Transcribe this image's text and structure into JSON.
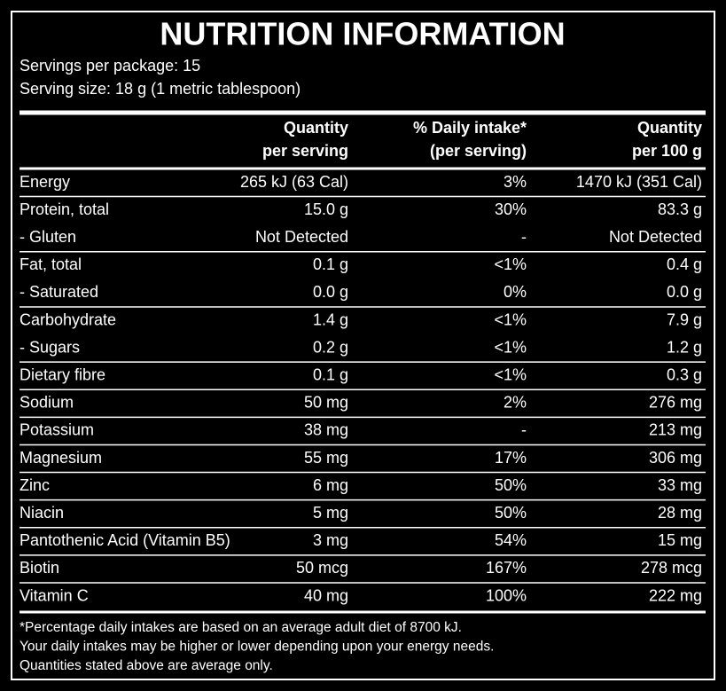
{
  "header": {
    "title": "NUTRITION INFORMATION",
    "servings_per_package": "Servings per package: 15",
    "serving_size": "Serving size: 18 g (1 metric tablespoon)"
  },
  "table": {
    "columns": [
      [
        "Quantity",
        "per serving"
      ],
      [
        "% Daily intake*",
        "(per serving)"
      ],
      [
        "Quantity",
        "per 100 g"
      ]
    ],
    "rows": [
      [
        "Energy",
        "265 kJ (63 Cal)",
        "3%",
        "1470 kJ (351 Cal)"
      ],
      [
        "Protein, total",
        "15.0 g",
        "30%",
        "83.3 g"
      ],
      [
        "- Gluten",
        "Not Detected",
        "-",
        "Not Detected"
      ],
      [
        "Fat, total",
        "0.1 g",
        "<1%",
        "0.4 g"
      ],
      [
        "- Saturated",
        "0.0 g",
        "0%",
        "0.0 g"
      ],
      [
        "Carbohydrate",
        "1.4 g",
        "<1%",
        "7.9 g"
      ],
      [
        "- Sugars",
        "0.2 g",
        "<1%",
        "1.2 g"
      ],
      [
        "Dietary fibre",
        "0.1 g",
        "<1%",
        "0.3 g"
      ],
      [
        "Sodium",
        "50 mg",
        "2%",
        "276 mg"
      ],
      [
        "Potassium",
        "38 mg",
        "-",
        "213 mg"
      ],
      [
        "Magnesium",
        "55 mg",
        "17%",
        "306 mg"
      ],
      [
        "Zinc",
        "6 mg",
        "50%",
        "33 mg"
      ],
      [
        "Niacin",
        "5 mg",
        "50%",
        "28 mg"
      ],
      [
        "Pantothenic Acid (Vitamin B5)",
        "3 mg",
        "54%",
        "15 mg"
      ],
      [
        "Biotin",
        "50 mcg",
        "167%",
        "278 mcg"
      ],
      [
        "Vitamin C",
        "40 mg",
        "100%",
        "222 mg"
      ]
    ]
  },
  "footnote": [
    "*Percentage daily intakes are based on an average adult diet of 8700 kJ.",
    "Your daily intakes may be higher or lower depending upon your energy needs.",
    "Quantities stated above are average only."
  ]
}
